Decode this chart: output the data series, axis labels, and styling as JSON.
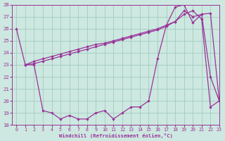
{
  "xlabel": "Windchill (Refroidissement éolien,°C)",
  "bg_color": "#cde8e0",
  "grid_color": "#a0ccc0",
  "line_color": "#993399",
  "xlim": [
    -0.5,
    23
  ],
  "ylim": [
    18,
    28
  ],
  "xticks": [
    0,
    1,
    2,
    3,
    4,
    5,
    6,
    7,
    8,
    9,
    10,
    11,
    12,
    13,
    14,
    15,
    16,
    17,
    18,
    19,
    20,
    21,
    22,
    23
  ],
  "yticks": [
    18,
    19,
    20,
    21,
    22,
    23,
    24,
    25,
    26,
    27,
    28
  ],
  "s1_x": [
    0,
    1,
    2,
    3,
    4,
    5,
    6,
    7,
    8,
    9,
    10,
    11,
    12,
    13,
    14,
    15,
    16,
    17,
    18,
    19,
    20,
    21,
    22,
    23
  ],
  "s1_y": [
    26,
    23,
    23,
    19.2,
    19.0,
    18.5,
    18.8,
    18.5,
    18.5,
    19.0,
    19.2,
    18.5,
    19.0,
    19.5,
    19.5,
    20.0,
    23.5,
    26.3,
    27.8,
    28.0,
    26.5,
    27.2,
    22.0,
    20.0
  ],
  "s2_x": [
    1,
    2,
    3,
    4,
    5,
    6,
    7,
    8,
    9,
    10,
    11,
    12,
    13,
    14,
    15,
    16,
    17,
    18,
    19,
    20,
    21,
    22,
    23
  ],
  "s2_y": [
    23,
    23.3,
    23.5,
    23.7,
    23.9,
    24.1,
    24.3,
    24.5,
    24.7,
    24.8,
    25.0,
    25.2,
    25.4,
    25.6,
    25.8,
    26.0,
    26.3,
    26.6,
    27.5,
    27.0,
    27.2,
    27.3,
    20.0
  ],
  "s3_x": [
    1,
    2,
    3,
    4,
    5,
    6,
    7,
    8,
    9,
    10,
    11,
    12,
    13,
    14,
    15,
    16,
    17,
    18,
    19,
    20,
    21,
    22,
    23
  ],
  "s3_y": [
    23,
    23.1,
    23.3,
    23.5,
    23.7,
    23.9,
    24.1,
    24.3,
    24.5,
    24.7,
    24.9,
    25.1,
    25.3,
    25.5,
    25.7,
    25.9,
    26.2,
    26.6,
    27.2,
    27.5,
    26.8,
    19.5,
    20.0
  ]
}
